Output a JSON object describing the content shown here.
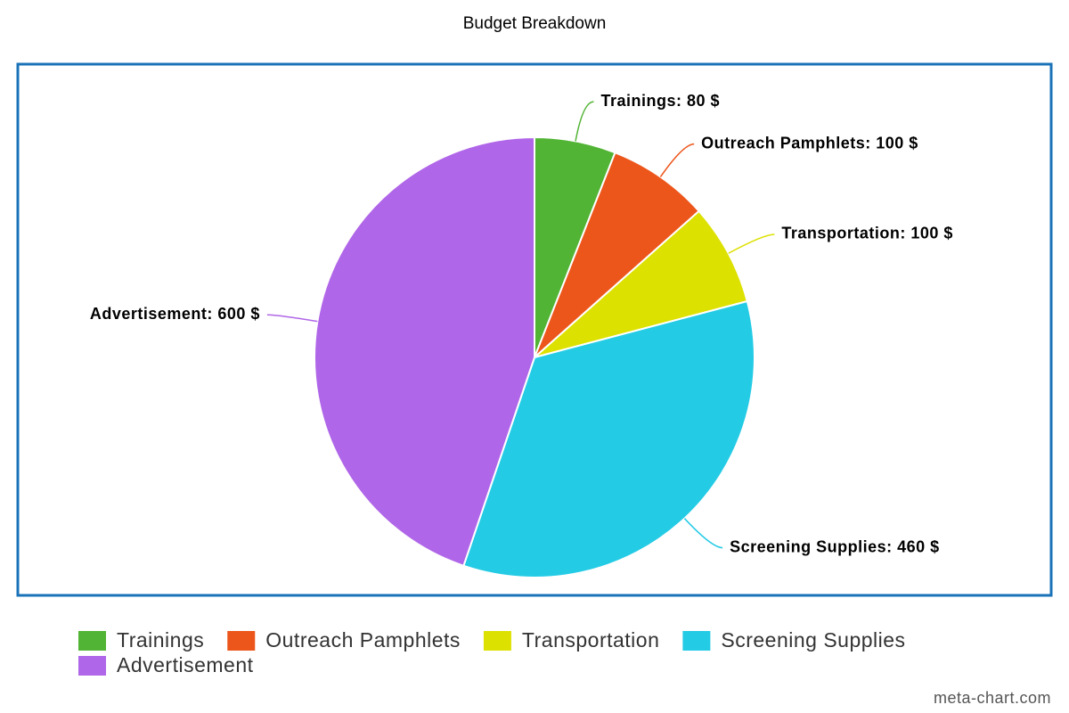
{
  "chart_data": {
    "type": "pie",
    "title": "Budget Breakdown",
    "categories": [
      "Trainings",
      "Outreach Pamphlets",
      "Transportation",
      "Screening Supplies",
      "Advertisement"
    ],
    "values": [
      80,
      100,
      100,
      460,
      600
    ],
    "value_labels": [
      "Trainings: 80 $",
      "Outreach Pamphlets: 100 $",
      "Transportation: 100 $",
      "Screening Supplies: 460 $",
      "Advertisement: 600 $"
    ],
    "colors": [
      "#52b435",
      "#ec561b",
      "#dde100",
      "#24cbe5",
      "#b066e8"
    ],
    "legend": "bottom",
    "credit": "meta-chart.com"
  }
}
